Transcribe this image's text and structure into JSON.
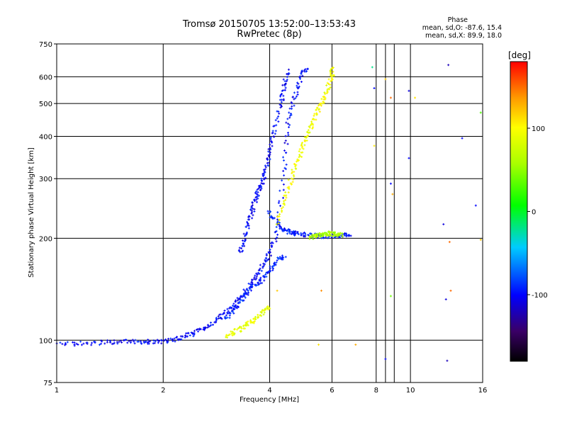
{
  "header": {
    "title_line1": "Tromsø 20150705 13:52:00–13:53:43",
    "title_line2": "RwPretec (8p)"
  },
  "phase_box": {
    "title": "Phase",
    "o_mode": "mean, sd,O: -87.6, 15.4",
    "x_mode": "mean, sd,X:  89.9, 18.0"
  },
  "colorbar": {
    "label": "[deg]",
    "ticks": [
      "100",
      "0",
      "-100"
    ],
    "tick_values": [
      100,
      0,
      -100
    ],
    "range": [
      -180,
      180
    ]
  },
  "chart_data": {
    "type": "scatter",
    "title": "Tromsø 20150705 13:52:00–13:53:43",
    "subtitle": "RwPretec (8p)",
    "xlabel": "Frequency [MHz]",
    "ylabel": "Stationary phase Virtual Height [km]",
    "x_scale": "log",
    "y_scale": "log",
    "xlim": [
      1,
      16
    ],
    "ylim": [
      75,
      750
    ],
    "x_ticks": [
      "1",
      "2",
      "4",
      "6",
      "8",
      "10",
      "16"
    ],
    "x_tick_values": [
      1,
      2,
      4,
      6,
      8,
      10,
      16
    ],
    "y_ticks": [
      "750",
      "600",
      "500",
      "400",
      "300",
      "200",
      "100",
      "75"
    ],
    "y_tick_values": [
      750,
      600,
      500,
      400,
      300,
      200,
      100,
      75
    ],
    "grid": true,
    "color_variable": "Phase [deg]",
    "traces": [
      {
        "mode": "O",
        "phase": -100,
        "points": [
          [
            1.0,
            97
          ],
          [
            1.2,
            98
          ],
          [
            1.4,
            98.5
          ],
          [
            1.6,
            99
          ],
          [
            1.8,
            99
          ],
          [
            2.0,
            99
          ],
          [
            2.2,
            101
          ],
          [
            2.4,
            104
          ],
          [
            2.6,
            108
          ],
          [
            2.8,
            113
          ],
          [
            3.0,
            120
          ],
          [
            3.2,
            128
          ],
          [
            3.4,
            138
          ],
          [
            3.6,
            150
          ],
          [
            3.8,
            165
          ],
          [
            4.0,
            180
          ],
          [
            4.2,
            210
          ],
          [
            4.4,
            320
          ],
          [
            4.5,
            440
          ],
          [
            4.7,
            520
          ],
          [
            4.9,
            600
          ],
          [
            5.1,
            640
          ]
        ]
      },
      {
        "mode": "O",
        "phase": -100,
        "points": [
          [
            3.3,
            180
          ],
          [
            3.4,
            200
          ],
          [
            3.5,
            225
          ],
          [
            3.6,
            250
          ],
          [
            3.7,
            270
          ],
          [
            3.8,
            290
          ],
          [
            3.9,
            320
          ],
          [
            4.0,
            360
          ],
          [
            4.1,
            410
          ],
          [
            4.3,
            500
          ],
          [
            4.4,
            560
          ],
          [
            4.5,
            630
          ]
        ]
      },
      {
        "mode": "O",
        "phase": -90,
        "points": [
          [
            3.0,
            115
          ],
          [
            3.2,
            125
          ],
          [
            3.4,
            135
          ],
          [
            3.6,
            145
          ],
          [
            3.8,
            150
          ],
          [
            4.0,
            160
          ],
          [
            4.2,
            172
          ],
          [
            4.4,
            178
          ]
        ]
      },
      {
        "mode": "O",
        "phase": -95,
        "points": [
          [
            4.0,
            240
          ],
          [
            4.2,
            220
          ],
          [
            4.4,
            212
          ],
          [
            4.6,
            208
          ],
          [
            4.8,
            206
          ],
          [
            5.2,
            204
          ],
          [
            5.6,
            203
          ],
          [
            6.0,
            203
          ],
          [
            6.4,
            204
          ],
          [
            6.8,
            205
          ]
        ]
      },
      {
        "mode": "X",
        "phase": 90,
        "points": [
          [
            3.0,
            102
          ],
          [
            3.2,
            106
          ],
          [
            3.4,
            110
          ],
          [
            3.6,
            114
          ],
          [
            3.8,
            120
          ],
          [
            4.0,
            126
          ]
        ]
      },
      {
        "mode": "X",
        "phase": 95,
        "points": [
          [
            4.2,
            220
          ],
          [
            4.4,
            260
          ],
          [
            4.6,
            300
          ],
          [
            4.8,
            340
          ],
          [
            5.0,
            380
          ],
          [
            5.2,
            420
          ],
          [
            5.4,
            460
          ],
          [
            5.6,
            500
          ],
          [
            5.8,
            540
          ],
          [
            6.0,
            600
          ],
          [
            6.0,
            640
          ]
        ]
      },
      {
        "mode": "X",
        "phase": 60,
        "points": [
          [
            5.2,
            200
          ],
          [
            5.4,
            203
          ],
          [
            5.6,
            205
          ],
          [
            5.8,
            207
          ],
          [
            6.0,
            206
          ],
          [
            6.2,
            205
          ],
          [
            6.4,
            204
          ]
        ]
      }
    ],
    "scattered_points": [
      {
        "x": 7.8,
        "y": 640,
        "phase": -20
      },
      {
        "x": 7.9,
        "y": 555,
        "phase": -100
      },
      {
        "x": 8.5,
        "y": 590,
        "phase": 120
      },
      {
        "x": 8.8,
        "y": 520,
        "phase": 150
      },
      {
        "x": 10.3,
        "y": 520,
        "phase": 110
      },
      {
        "x": 9.9,
        "y": 545,
        "phase": -110
      },
      {
        "x": 12.8,
        "y": 650,
        "phase": -120
      },
      {
        "x": 14.0,
        "y": 395,
        "phase": -100
      },
      {
        "x": 15.8,
        "y": 470,
        "phase": 30
      },
      {
        "x": 7.9,
        "y": 375,
        "phase": 110
      },
      {
        "x": 9.9,
        "y": 345,
        "phase": -100
      },
      {
        "x": 8.8,
        "y": 290,
        "phase": -100
      },
      {
        "x": 8.9,
        "y": 270,
        "phase": 130
      },
      {
        "x": 12.4,
        "y": 220,
        "phase": -110
      },
      {
        "x": 15.3,
        "y": 250,
        "phase": -100
      },
      {
        "x": 12.9,
        "y": 195,
        "phase": 150
      },
      {
        "x": 15.8,
        "y": 198,
        "phase": 120
      },
      {
        "x": 8.8,
        "y": 135,
        "phase": 40
      },
      {
        "x": 12.6,
        "y": 132,
        "phase": -110
      },
      {
        "x": 13.0,
        "y": 140,
        "phase": 150
      },
      {
        "x": 8.5,
        "y": 88,
        "phase": -100
      },
      {
        "x": 12.7,
        "y": 87,
        "phase": -120
      },
      {
        "x": 7.0,
        "y": 97,
        "phase": 130
      },
      {
        "x": 5.5,
        "y": 97,
        "phase": 110
      },
      {
        "x": 4.2,
        "y": 140,
        "phase": 120
      },
      {
        "x": 5.6,
        "y": 140,
        "phase": 140
      }
    ]
  }
}
